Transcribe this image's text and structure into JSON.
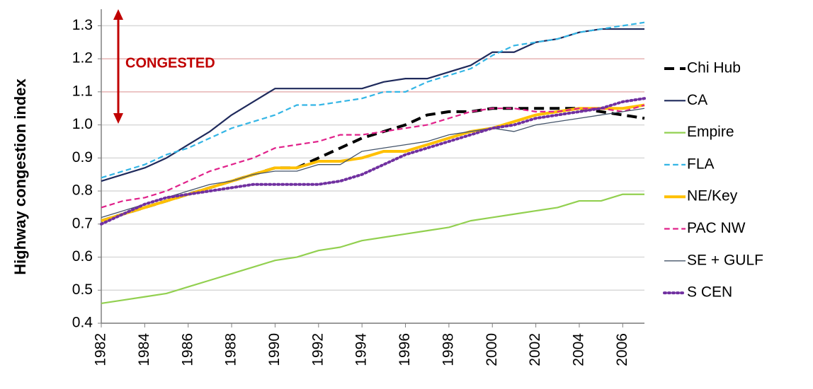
{
  "chart_data": {
    "type": "line",
    "y_label": "Highway congestion index",
    "annotation": "CONGESTED",
    "x": [
      1982,
      1983,
      1984,
      1985,
      1986,
      1987,
      1988,
      1989,
      1990,
      1991,
      1992,
      1993,
      1994,
      1995,
      1996,
      1997,
      1998,
      1999,
      2000,
      2001,
      2002,
      2003,
      2004,
      2005,
      2006,
      2007
    ],
    "xlim": [
      1982,
      2007
    ],
    "xticks": [
      1982,
      1984,
      1986,
      1988,
      1990,
      1992,
      1994,
      1996,
      1998,
      2000,
      2002,
      2004,
      2006
    ],
    "ylim": [
      0.4,
      1.35
    ],
    "yticks": [
      0.4,
      0.5,
      0.6,
      0.7,
      0.8,
      0.9,
      {
        "value": 1,
        "label": "1.0"
      },
      1.1,
      1.2,
      1.3
    ],
    "grid": true,
    "grid_colors": [
      "#d9d9d9",
      "#d9d9d9",
      "#d9d9d9",
      "#d9d9d9",
      "#d9d9d9",
      "#d9d9d9",
      "#d9d9d9",
      "#e6b3b3",
      "#e6b3b3",
      "#d9d9d9"
    ],
    "legend": "right",
    "series": [
      {
        "name": "Chi Hub",
        "color": "#000000",
        "line_style": "dashed",
        "weight": "thick",
        "values": [
          0.71,
          0.73,
          0.75,
          0.77,
          0.79,
          0.81,
          0.83,
          0.85,
          0.87,
          0.87,
          0.9,
          0.93,
          0.96,
          0.98,
          1.0,
          1.03,
          1.04,
          1.04,
          1.05,
          1.05,
          1.05,
          1.05,
          1.05,
          1.04,
          1.03,
          1.02
        ]
      },
      {
        "name": "CA",
        "color": "#1f2a5c",
        "line_style": "solid",
        "weight": "normal",
        "values": [
          0.83,
          0.85,
          0.87,
          0.9,
          0.94,
          0.98,
          1.03,
          1.07,
          1.11,
          1.11,
          1.11,
          1.11,
          1.11,
          1.13,
          1.14,
          1.14,
          1.16,
          1.18,
          1.22,
          1.22,
          1.25,
          1.26,
          1.28,
          1.29,
          1.29,
          1.29
        ]
      },
      {
        "name": "Empire",
        "color": "#92d050",
        "line_style": "solid",
        "weight": "normal",
        "values": [
          0.46,
          0.47,
          0.48,
          0.49,
          0.51,
          0.53,
          0.55,
          0.57,
          0.59,
          0.6,
          0.62,
          0.63,
          0.65,
          0.66,
          0.67,
          0.68,
          0.69,
          0.71,
          0.72,
          0.73,
          0.74,
          0.75,
          0.77,
          0.77,
          0.79,
          0.79
        ]
      },
      {
        "name": "FLA",
        "color": "#33b5e5",
        "line_style": "dashed",
        "weight": "normal",
        "values": [
          0.84,
          0.86,
          0.88,
          0.91,
          0.93,
          0.96,
          0.99,
          1.01,
          1.03,
          1.06,
          1.06,
          1.07,
          1.08,
          1.1,
          1.1,
          1.13,
          1.15,
          1.17,
          1.21,
          1.24,
          1.25,
          1.26,
          1.28,
          1.29,
          1.3,
          1.31
        ]
      },
      {
        "name": "NE/Key",
        "color": "#ffc000",
        "line_style": "solid",
        "weight": "thick",
        "values": [
          0.71,
          0.73,
          0.75,
          0.77,
          0.79,
          0.81,
          0.83,
          0.85,
          0.87,
          0.87,
          0.89,
          0.89,
          0.9,
          0.92,
          0.92,
          0.94,
          0.96,
          0.98,
          0.99,
          1.01,
          1.03,
          1.04,
          1.05,
          1.05,
          1.05,
          1.06
        ]
      },
      {
        "name": "PAC NW",
        "color": "#e0218a",
        "line_style": "dashed",
        "weight": "normal",
        "values": [
          0.75,
          0.77,
          0.78,
          0.8,
          0.83,
          0.86,
          0.88,
          0.9,
          0.93,
          0.94,
          0.95,
          0.97,
          0.97,
          0.98,
          0.99,
          1.0,
          1.02,
          1.04,
          1.05,
          1.05,
          1.04,
          1.04,
          1.05,
          1.05,
          1.04,
          1.06
        ]
      },
      {
        "name": "SE + GULF",
        "color": "#44546a",
        "line_style": "solid",
        "weight": "thin",
        "values": [
          0.72,
          0.74,
          0.76,
          0.78,
          0.8,
          0.82,
          0.83,
          0.85,
          0.86,
          0.86,
          0.88,
          0.88,
          0.92,
          0.93,
          0.94,
          0.95,
          0.97,
          0.98,
          0.99,
          0.98,
          1.0,
          1.01,
          1.02,
          1.03,
          1.04,
          1.05
        ]
      },
      {
        "name": "S CEN",
        "color": "#7030a0",
        "line_style": "dotted",
        "weight": "thick",
        "values": [
          0.7,
          0.73,
          0.76,
          0.78,
          0.79,
          0.8,
          0.81,
          0.82,
          0.82,
          0.82,
          0.82,
          0.83,
          0.85,
          0.88,
          0.91,
          0.93,
          0.95,
          0.97,
          0.99,
          1.0,
          1.02,
          1.03,
          1.04,
          1.05,
          1.07,
          1.08
        ]
      }
    ]
  }
}
